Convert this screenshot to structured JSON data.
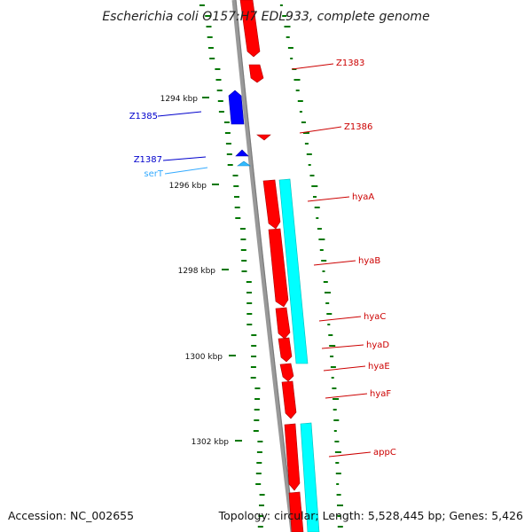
{
  "title": "Escherichia coli O157:H7 EDL933, complete genome",
  "footer": {
    "accession": "Accession: NC_002655",
    "topology": "Topology: circular; Length: 5,528,445 bp; Genes: 5,426"
  },
  "colors": {
    "forward_gene": "#ff0000",
    "reverse_gene": "#0000ff",
    "trna": "#33bbff",
    "cds_feature": "#00ffff",
    "backbone": "#888888",
    "tick": "#007700",
    "gc_dots": "#009900",
    "label_forward": "#cc0000",
    "label_reverse": "#0000cc",
    "label_trna": "#33aaff"
  },
  "scale": {
    "ticks": [
      {
        "label": "1294 kbp",
        "kbp": 1294
      },
      {
        "label": "1296 kbp",
        "kbp": 1296
      },
      {
        "label": "1298 kbp",
        "kbp": 1298
      },
      {
        "label": "1300 kbp",
        "kbp": 1300
      },
      {
        "label": "1302 kbp",
        "kbp": 1302
      }
    ]
  },
  "genes": [
    {
      "name": "Z1383",
      "strand": "forward",
      "label_color": "label_forward"
    },
    {
      "name": "Z1385",
      "strand": "reverse",
      "label_color": "label_reverse"
    },
    {
      "name": "Z1386",
      "strand": "forward",
      "label_color": "label_forward"
    },
    {
      "name": "Z1387",
      "strand": "reverse",
      "label_color": "label_reverse"
    },
    {
      "name": "serT",
      "strand": "reverse",
      "label_color": "label_trna"
    },
    {
      "name": "hyaA",
      "strand": "forward",
      "label_color": "label_forward"
    },
    {
      "name": "hyaB",
      "strand": "forward",
      "label_color": "label_forward"
    },
    {
      "name": "hyaC",
      "strand": "forward",
      "label_color": "label_forward"
    },
    {
      "name": "hyaD",
      "strand": "forward",
      "label_color": "label_forward"
    },
    {
      "name": "hyaE",
      "strand": "forward",
      "label_color": "label_forward"
    },
    {
      "name": "hyaF",
      "strand": "forward",
      "label_color": "label_forward"
    },
    {
      "name": "appC",
      "strand": "forward",
      "label_color": "label_forward"
    }
  ]
}
